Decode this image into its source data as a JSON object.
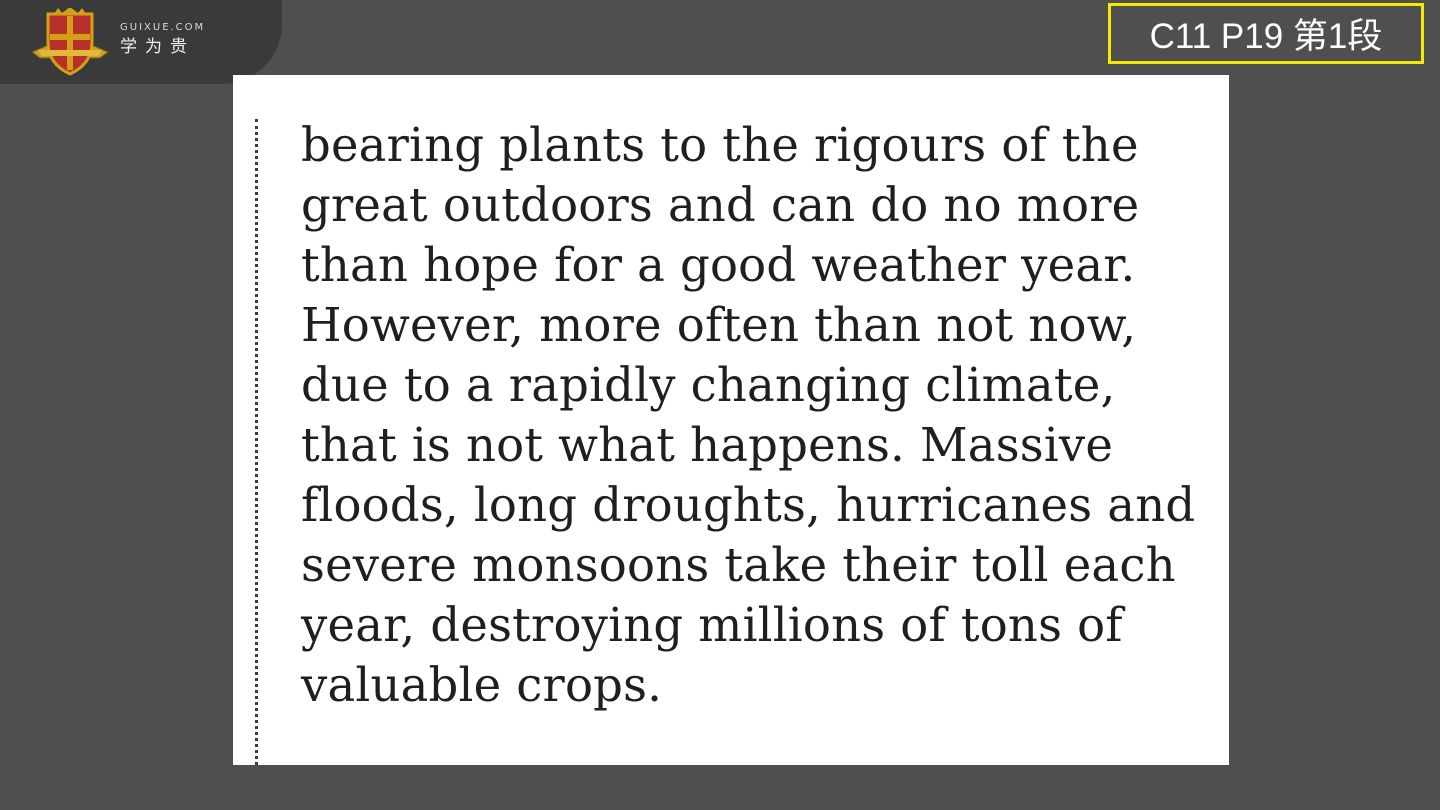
{
  "brand": {
    "domain": "GUIXUE.COM",
    "name_cn": "学为贵"
  },
  "page_tag": "C11 P19 第1段",
  "passage": {
    "lines": [
      "bearing plants to the rigours of the",
      "great outdoors and can do no more",
      "than hope for a good weather year.",
      "However, more often than not now,",
      "due to a rapidly changing climate,",
      "that is not what happens. Massive",
      "floods, long droughts, hurricanes and",
      "severe monsoons take their toll each",
      "year, destroying millions of tons of",
      "valuable crops."
    ]
  },
  "colors": {
    "background": "#4f4f4f",
    "tag_border": "#f2ea00",
    "shield_red": "#c0392b",
    "shield_gold": "#d4a017"
  },
  "icons": {
    "logo": "shield-crest-icon"
  }
}
